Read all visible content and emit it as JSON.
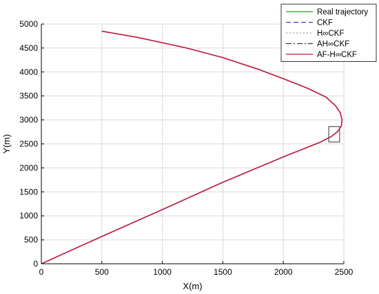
{
  "chart_data": {
    "type": "line",
    "xlabel": "X(m)",
    "ylabel": "Y(m)",
    "xlim": [
      0,
      2500
    ],
    "ylim": [
      0,
      5000
    ],
    "xticks": [
      0,
      500,
      1000,
      1500,
      2000,
      2500
    ],
    "yticks": [
      0,
      500,
      1000,
      1500,
      2000,
      2500,
      3000,
      3500,
      4000,
      4500,
      5000
    ],
    "grid": true,
    "legend_position": "top-right",
    "series": [
      {
        "name": "Real trajectory",
        "color": "#1aa01a",
        "style": "solid",
        "x": [
          0,
          500,
          1000,
          1500,
          2000,
          2300,
          2400,
          2450,
          2480,
          2485,
          2470,
          2430,
          2350,
          2200,
          2000,
          1800,
          1500,
          1200,
          1000,
          800,
          500
        ],
        "y": [
          0,
          570,
          1130,
          1700,
          2230,
          2530,
          2660,
          2760,
          2880,
          3000,
          3150,
          3300,
          3480,
          3660,
          3860,
          4050,
          4300,
          4500,
          4610,
          4720,
          4850
        ]
      },
      {
        "name": "CKF",
        "color": "#3b3bd6",
        "style": "dashed",
        "x": [
          0,
          500,
          1000,
          1500,
          2000,
          2300,
          2400,
          2450,
          2480,
          2485,
          2470,
          2430,
          2350,
          2200,
          2000,
          1800,
          1500,
          1200,
          1000,
          800,
          500
        ],
        "y": [
          0,
          570,
          1130,
          1700,
          2230,
          2530,
          2660,
          2760,
          2880,
          3000,
          3150,
          3300,
          3480,
          3660,
          3860,
          4050,
          4300,
          4500,
          4610,
          4720,
          4850
        ]
      },
      {
        "name": "H∞CKF",
        "color": "#9a9a9a",
        "style": "dotted",
        "x": [
          0,
          500,
          1000,
          1500,
          2000,
          2300,
          2400,
          2450,
          2480,
          2485,
          2470,
          2430,
          2350,
          2200,
          2000,
          1800,
          1500,
          1200,
          1000,
          800,
          500
        ],
        "y": [
          0,
          570,
          1130,
          1700,
          2230,
          2530,
          2660,
          2760,
          2880,
          3000,
          3150,
          3300,
          3480,
          3660,
          3860,
          4050,
          4300,
          4500,
          4610,
          4720,
          4850
        ]
      },
      {
        "name": "AH∞CKF",
        "color": "#333333",
        "style": "dashdot",
        "x": [
          0,
          500,
          1000,
          1500,
          2000,
          2300,
          2400,
          2450,
          2480,
          2485,
          2470,
          2430,
          2350,
          2200,
          2000,
          1800,
          1500,
          1200,
          1000,
          800,
          500
        ],
        "y": [
          0,
          570,
          1130,
          1700,
          2230,
          2530,
          2660,
          2760,
          2880,
          3000,
          3150,
          3300,
          3480,
          3660,
          3860,
          4050,
          4300,
          4500,
          4610,
          4720,
          4850
        ]
      },
      {
        "name": "AF-H∞CKF",
        "color": "#c4183c",
        "style": "solid",
        "x": [
          0,
          500,
          1000,
          1500,
          2000,
          2300,
          2400,
          2450,
          2480,
          2485,
          2470,
          2430,
          2350,
          2200,
          2000,
          1800,
          1500,
          1200,
          1000,
          800,
          500
        ],
        "y": [
          0,
          570,
          1130,
          1700,
          2230,
          2530,
          2660,
          2760,
          2880,
          3000,
          3150,
          3300,
          3480,
          3660,
          3860,
          4050,
          4300,
          4500,
          4610,
          4720,
          4850
        ]
      }
    ],
    "zoom_box": {
      "x": [
        2375,
        2465
      ],
      "y": [
        2540,
        2860
      ]
    }
  }
}
